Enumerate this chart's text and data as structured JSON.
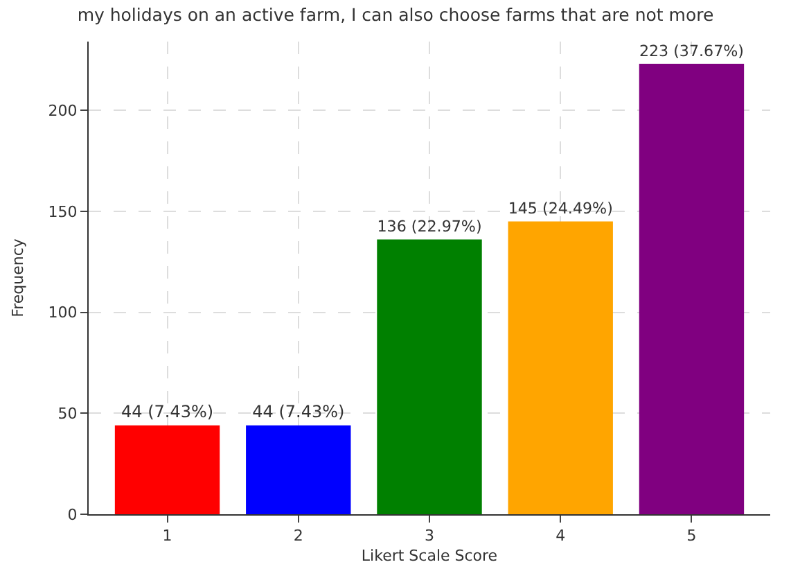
{
  "chart_data": {
    "type": "bar",
    "title": "my holidays on an active farm, I can also choose farms that are not more",
    "xlabel": "Likert Scale Score",
    "ylabel": "Frequency",
    "categories": [
      "1",
      "2",
      "3",
      "4",
      "5"
    ],
    "values": [
      44,
      44,
      136,
      145,
      223
    ],
    "colors": [
      "#ff0000",
      "#0000ff",
      "#008000",
      "#ffa500",
      "#800080"
    ],
    "value_labels": [
      "44 (7.43%)",
      "44 (7.43%)",
      "136 (22.97%)",
      "145 (24.49%)",
      "223 (37.67%)"
    ],
    "ylim": [
      0,
      234
    ],
    "yticks": [
      0,
      50,
      100,
      150,
      200
    ],
    "grid": true
  }
}
